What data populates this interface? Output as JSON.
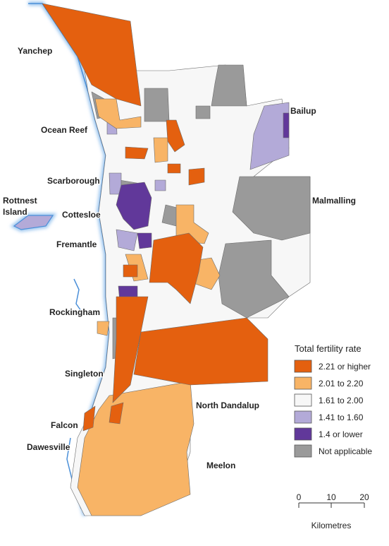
{
  "map": {
    "labels": [
      "Yanchep",
      "Ocean Reef",
      "Scarborough",
      "Rottnest",
      "Island",
      "Cottesloe",
      "Fremantle",
      "Rockingham",
      "Singleton",
      "Falcon",
      "Dawesville",
      "North Dandalup",
      "Meelon",
      "Bailup",
      "Malmalling"
    ]
  },
  "legend": {
    "title": "Total fertility rate",
    "items": [
      {
        "label": "2.21 or higher",
        "color": "#e4600f"
      },
      {
        "label": "2.01 to 2.20",
        "color": "#f8b466"
      },
      {
        "label": "1.61 to 2.00",
        "color": "#f7f7f7"
      },
      {
        "label": "1.41 to 1.60",
        "color": "#b3aad8"
      },
      {
        "label": "1.4 or lower",
        "color": "#61389a"
      },
      {
        "label": "Not applicable",
        "color": "#9a9a9a"
      }
    ]
  },
  "scale_bar": {
    "ticks": [
      "0",
      "10",
      "20"
    ],
    "unit": "Kilometres"
  }
}
